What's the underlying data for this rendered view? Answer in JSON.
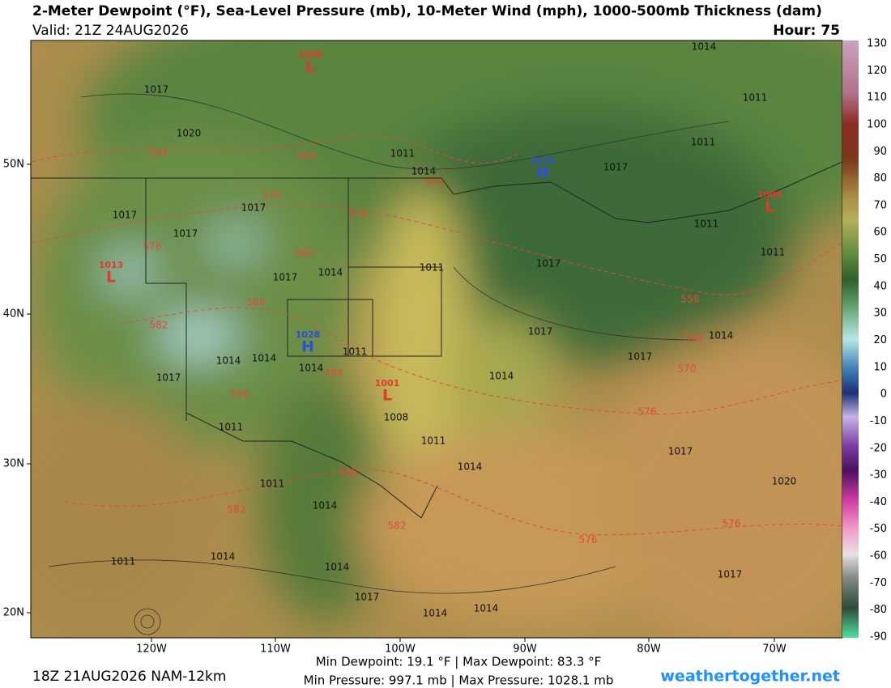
{
  "header": {
    "title": "2-Meter Dewpoint (°F), Sea-Level Pressure (mb), 10-Meter Wind (mph), 1000-500mb Thickness (dam)",
    "valid": "Valid: 21Z 24AUG2026",
    "hour": "Hour: 75"
  },
  "colorbar": {
    "ticks": [
      130,
      120,
      110,
      100,
      90,
      80,
      70,
      60,
      50,
      40,
      30,
      20,
      10,
      0,
      -10,
      -20,
      -30,
      -40,
      -50,
      -60,
      -70,
      -80,
      -90
    ]
  },
  "map": {
    "lat_labels": [
      "50N",
      "40N",
      "30N",
      "20N"
    ],
    "lon_labels": [
      "120W",
      "110W",
      "100W",
      "90W",
      "80W",
      "70W"
    ],
    "pressure_centers": [
      {
        "symbol": "L",
        "value": 1006
      },
      {
        "symbol": "H",
        "value": 1019
      },
      {
        "symbol": "L",
        "value": 1009
      },
      {
        "symbol": "L",
        "value": 1013
      },
      {
        "symbol": "H",
        "value": 1028
      },
      {
        "symbol": "L",
        "value": 1001
      }
    ],
    "isobar_labels": [
      1017,
      1020,
      1011,
      1014,
      1017,
      1011,
      1014,
      1011,
      1017,
      1017,
      1017,
      1011,
      1014,
      1017,
      1011,
      1017,
      1011,
      1014,
      1017,
      1017,
      1014,
      1014,
      1011,
      1014,
      1017,
      1014,
      1008,
      1011,
      1011,
      1017,
      1020,
      1014,
      1011,
      1014,
      1011,
      1014,
      1014,
      1017,
      1014,
      1014,
      1017
    ],
    "thickness_labels": [
      564,
      564,
      570,
      570,
      576,
      576,
      582,
      588,
      582,
      588,
      594,
      558,
      564,
      570,
      576,
      588,
      582,
      582,
      576,
      576
    ]
  },
  "footer": {
    "run": "18Z 21AUG2026 NAM-12km",
    "dewpoint_range": "Min Dewpoint:  19.1 °F | Max Dewpoint:  83.3 °F",
    "pressure_range": "Min Pressure: 997.1 mb | Max Pressure: 1028.1 mb",
    "site": "weathertogether.net"
  }
}
